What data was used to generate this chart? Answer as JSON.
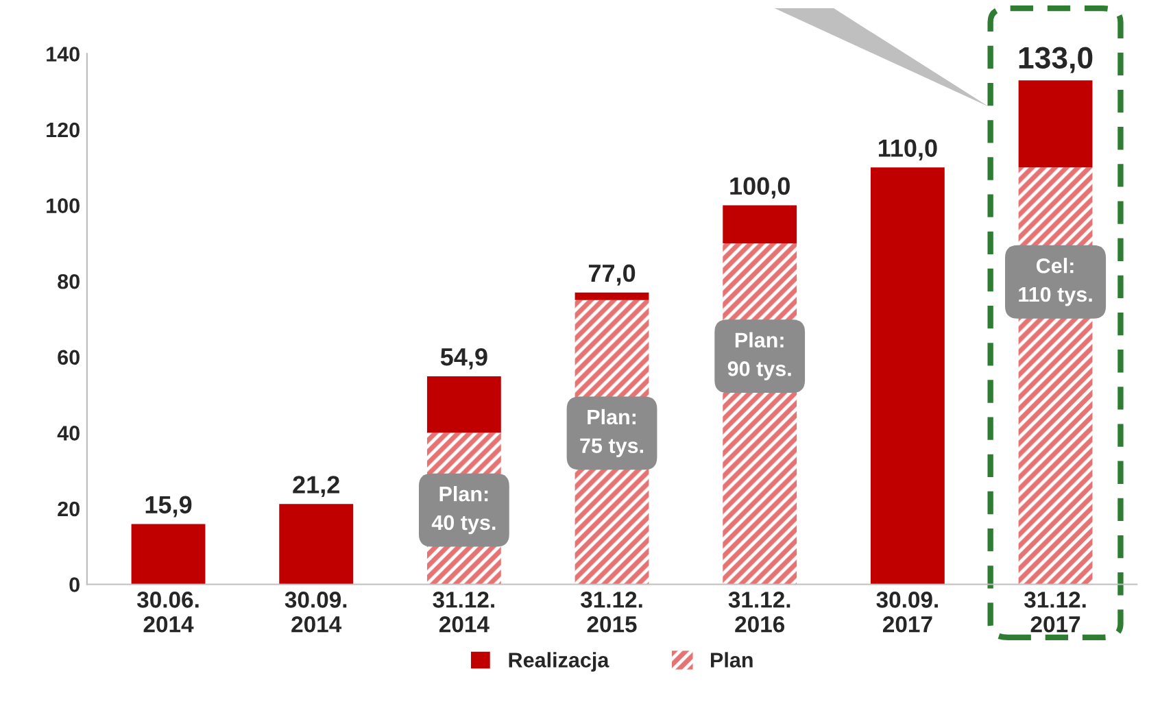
{
  "chart_data": {
    "type": "bar",
    "stacked": true,
    "categories": [
      "30.06.\n2014",
      "30.09.\n2014",
      "31.12.\n2014",
      "31.12.\n2015",
      "31.12.\n2016",
      "30.09.\n2017",
      "31.12.\n2017"
    ],
    "series": [
      {
        "name": "Plan",
        "color": "#e57373",
        "values": [
          null,
          null,
          40,
          75,
          90,
          null,
          110
        ]
      },
      {
        "name": "Realizacja",
        "color": "#c00000",
        "values": [
          15.9,
          21.2,
          14.9,
          2.0,
          10,
          110,
          23
        ]
      }
    ],
    "totals": [
      "15,9",
      "21,2",
      "54,9",
      "77,0",
      "100,0",
      "110,0",
      "133,0"
    ],
    "annotations": [
      "Plan:\n40 tys.",
      "Plan:\n75 tys.",
      "Plan:\n90 tys.",
      "Cel:\n110 tys."
    ],
    "ylim": [
      0,
      140
    ],
    "yticks": [
      0,
      20,
      40,
      60,
      80,
      100,
      120,
      140
    ],
    "grid": false,
    "legend": "bottom"
  }
}
